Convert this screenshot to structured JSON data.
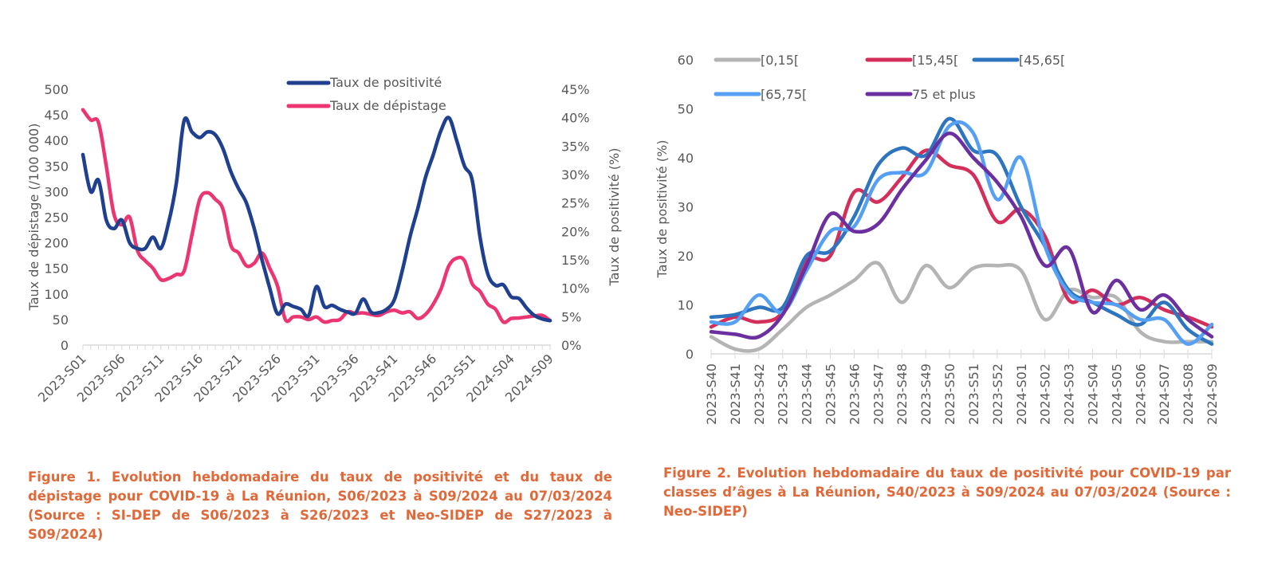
{
  "figure1": {
    "caption": "Figure 1. Evolution hebdomadaire du taux de positivité et du taux de dépistage pour COVID-19 à La Réunion, S06/2023 à S09/2024 au 07/03/2024 (Source : SI-DEP de S06/2023 à S26/2023 et Neo-SIDEP de S27/2023 à S09/2024)"
  },
  "figure2": {
    "caption": "Figure 2. Evolution hebdomadaire du taux de positivité pour COVID-19 par classes d’âges à La Réunion, S40/2023 à S09/2024 au 07/03/2024 (Source : Neo-SIDEP)"
  },
  "chart_data": [
    {
      "id": "fig1",
      "type": "line",
      "title": "",
      "xlabel": "",
      "ylabel": "Taux de dépistage (/100 000)",
      "y2label": "Taux de positivité (%)",
      "ylim": [
        0,
        500
      ],
      "y2lim": [
        0,
        45
      ],
      "yticks": [
        "0",
        "50",
        "100",
        "150",
        "200",
        "250",
        "300",
        "350",
        "400",
        "450",
        "500"
      ],
      "y2ticks": [
        "0%",
        "5%",
        "10%",
        "15%",
        "20%",
        "25%",
        "30%",
        "35%",
        "40%",
        "45%"
      ],
      "grid": false,
      "legend": "top-right",
      "x": [
        "2023-S01",
        "2023-S02",
        "2023-S03",
        "2023-S04",
        "2023-S05",
        "2023-S06",
        "2023-S07",
        "2023-S08",
        "2023-S09",
        "2023-S10",
        "2023-S11",
        "2023-S12",
        "2023-S13",
        "2023-S14",
        "2023-S15",
        "2023-S16",
        "2023-S17",
        "2023-S18",
        "2023-S19",
        "2023-S20",
        "2023-S21",
        "2023-S22",
        "2023-S23",
        "2023-S24",
        "2023-S25",
        "2023-S26",
        "2023-S27",
        "2023-S28",
        "2023-S29",
        "2023-S30",
        "2023-S31",
        "2023-S32",
        "2023-S33",
        "2023-S34",
        "2023-S35",
        "2023-S36",
        "2023-S37",
        "2023-S38",
        "2023-S39",
        "2023-S40",
        "2023-S41",
        "2023-S42",
        "2023-S43",
        "2023-S44",
        "2023-S45",
        "2023-S46",
        "2023-S47",
        "2023-S48",
        "2023-S49",
        "2023-S50",
        "2023-S51",
        "2023-S52",
        "2024-S01",
        "2024-S02",
        "2024-S03",
        "2024-S04",
        "2024-S05",
        "2024-S06",
        "2024-S07",
        "2024-S08",
        "2024-S09"
      ],
      "xtick_labels": [
        "2023-S01",
        "2023-S06",
        "2023-S11",
        "2023-S16",
        "2023-S21",
        "2023-S26",
        "2023-S31",
        "2023-S36",
        "2023-S41",
        "2023-S46",
        "2023-S51",
        "2024-S04",
        "2024-S09"
      ],
      "series": [
        {
          "name": "Taux de positivité",
          "axis": "right",
          "color": "#1F3F8F",
          "values": [
            33.5,
            27,
            29,
            22,
            20.5,
            22,
            18,
            17,
            17,
            19,
            17,
            21.5,
            28.5,
            39.5,
            37.5,
            36.5,
            37.5,
            37,
            34.5,
            30.5,
            27.5,
            25,
            20.5,
            15,
            10,
            5.5,
            7.2,
            6.8,
            6.3,
            5.2,
            10.3,
            6.8,
            7,
            6.3,
            5.8,
            5.6,
            8.1,
            5.8,
            5.7,
            6.3,
            8,
            13,
            19,
            24,
            29.5,
            33.5,
            37.8,
            40,
            36,
            31.5,
            29,
            19,
            12.5,
            10.5,
            10.6,
            8.5,
            8.2,
            6.5,
            5.2,
            4.6,
            4.3
          ]
        },
        {
          "name": "Taux de dépistage",
          "axis": "left",
          "color": "#EC3671",
          "values": [
            460,
            440,
            435,
            350,
            255,
            235,
            250,
            185,
            165,
            150,
            128,
            130,
            138,
            145,
            215,
            285,
            298,
            285,
            265,
            195,
            180,
            155,
            160,
            180,
            150,
            115,
            50,
            55,
            55,
            50,
            55,
            45,
            48,
            50,
            65,
            62,
            63,
            60,
            58,
            65,
            68,
            63,
            65,
            52,
            60,
            80,
            110,
            155,
            170,
            165,
            120,
            105,
            80,
            70,
            45,
            52,
            53,
            55,
            57,
            58,
            48
          ]
        }
      ]
    },
    {
      "id": "fig2",
      "type": "line",
      "title": "",
      "xlabel": "",
      "ylabel": "Taux de positivité (%)",
      "ylim": [
        0,
        60
      ],
      "yticks": [
        "0",
        "10",
        "20",
        "30",
        "40",
        "50",
        "60"
      ],
      "grid": false,
      "legend": "top",
      "x": [
        "2023-S40",
        "2023-S41",
        "2023-S42",
        "2023-S43",
        "2023-S44",
        "2023-S45",
        "2023-S46",
        "2023-S47",
        "2023-S48",
        "2023-S49",
        "2023-S50",
        "2023-S51",
        "2023-S52",
        "2024-S01",
        "2024-S02",
        "2024-S03",
        "2024-S04",
        "2024-S05",
        "2024-S06",
        "2024-S07",
        "2024-S08",
        "2024-S09"
      ],
      "series": [
        {
          "name": "[0,15[",
          "color": "#B4B4B4",
          "values": [
            3.5,
            1,
            1,
            5,
            9.5,
            12,
            15,
            18.5,
            10.5,
            18,
            13.5,
            17.5,
            18,
            17,
            7,
            13,
            11.5,
            11.5,
            4.5,
            2.5,
            2.5,
            2.5
          ]
        },
        {
          "name": "[15,45[",
          "color": "#D42E5A",
          "values": [
            5.5,
            7.5,
            6.5,
            8.5,
            19,
            20,
            33,
            31,
            36,
            41.5,
            38.5,
            36.5,
            27,
            29.5,
            24,
            11,
            13,
            10,
            11.5,
            9,
            7.5,
            5.5
          ]
        },
        {
          "name": "[45,65[",
          "color": "#2E75C0",
          "values": [
            7.5,
            8,
            9.5,
            9.5,
            20,
            21,
            28,
            38.5,
            42,
            40.5,
            48,
            41.5,
            40.5,
            30,
            22,
            13,
            10.5,
            8,
            6,
            10.5,
            5,
            2
          ]
        },
        {
          "name": "[65,75[",
          "color": "#55A0F5",
          "values": [
            6.5,
            6.5,
            12,
            8.5,
            17,
            25,
            26,
            35.5,
            37,
            37,
            46.5,
            45,
            31.5,
            40,
            22,
            12.5,
            10.5,
            10,
            7,
            7,
            2,
            6
          ]
        },
        {
          "name": "75 et plus",
          "color": "#6B2FA0",
          "values": [
            4.5,
            4,
            3.5,
            8,
            18,
            28.5,
            25,
            26.5,
            33.5,
            39.5,
            45,
            40,
            35,
            28,
            18,
            21.5,
            8.5,
            15,
            9,
            12,
            7,
            3.5
          ]
        }
      ]
    }
  ]
}
